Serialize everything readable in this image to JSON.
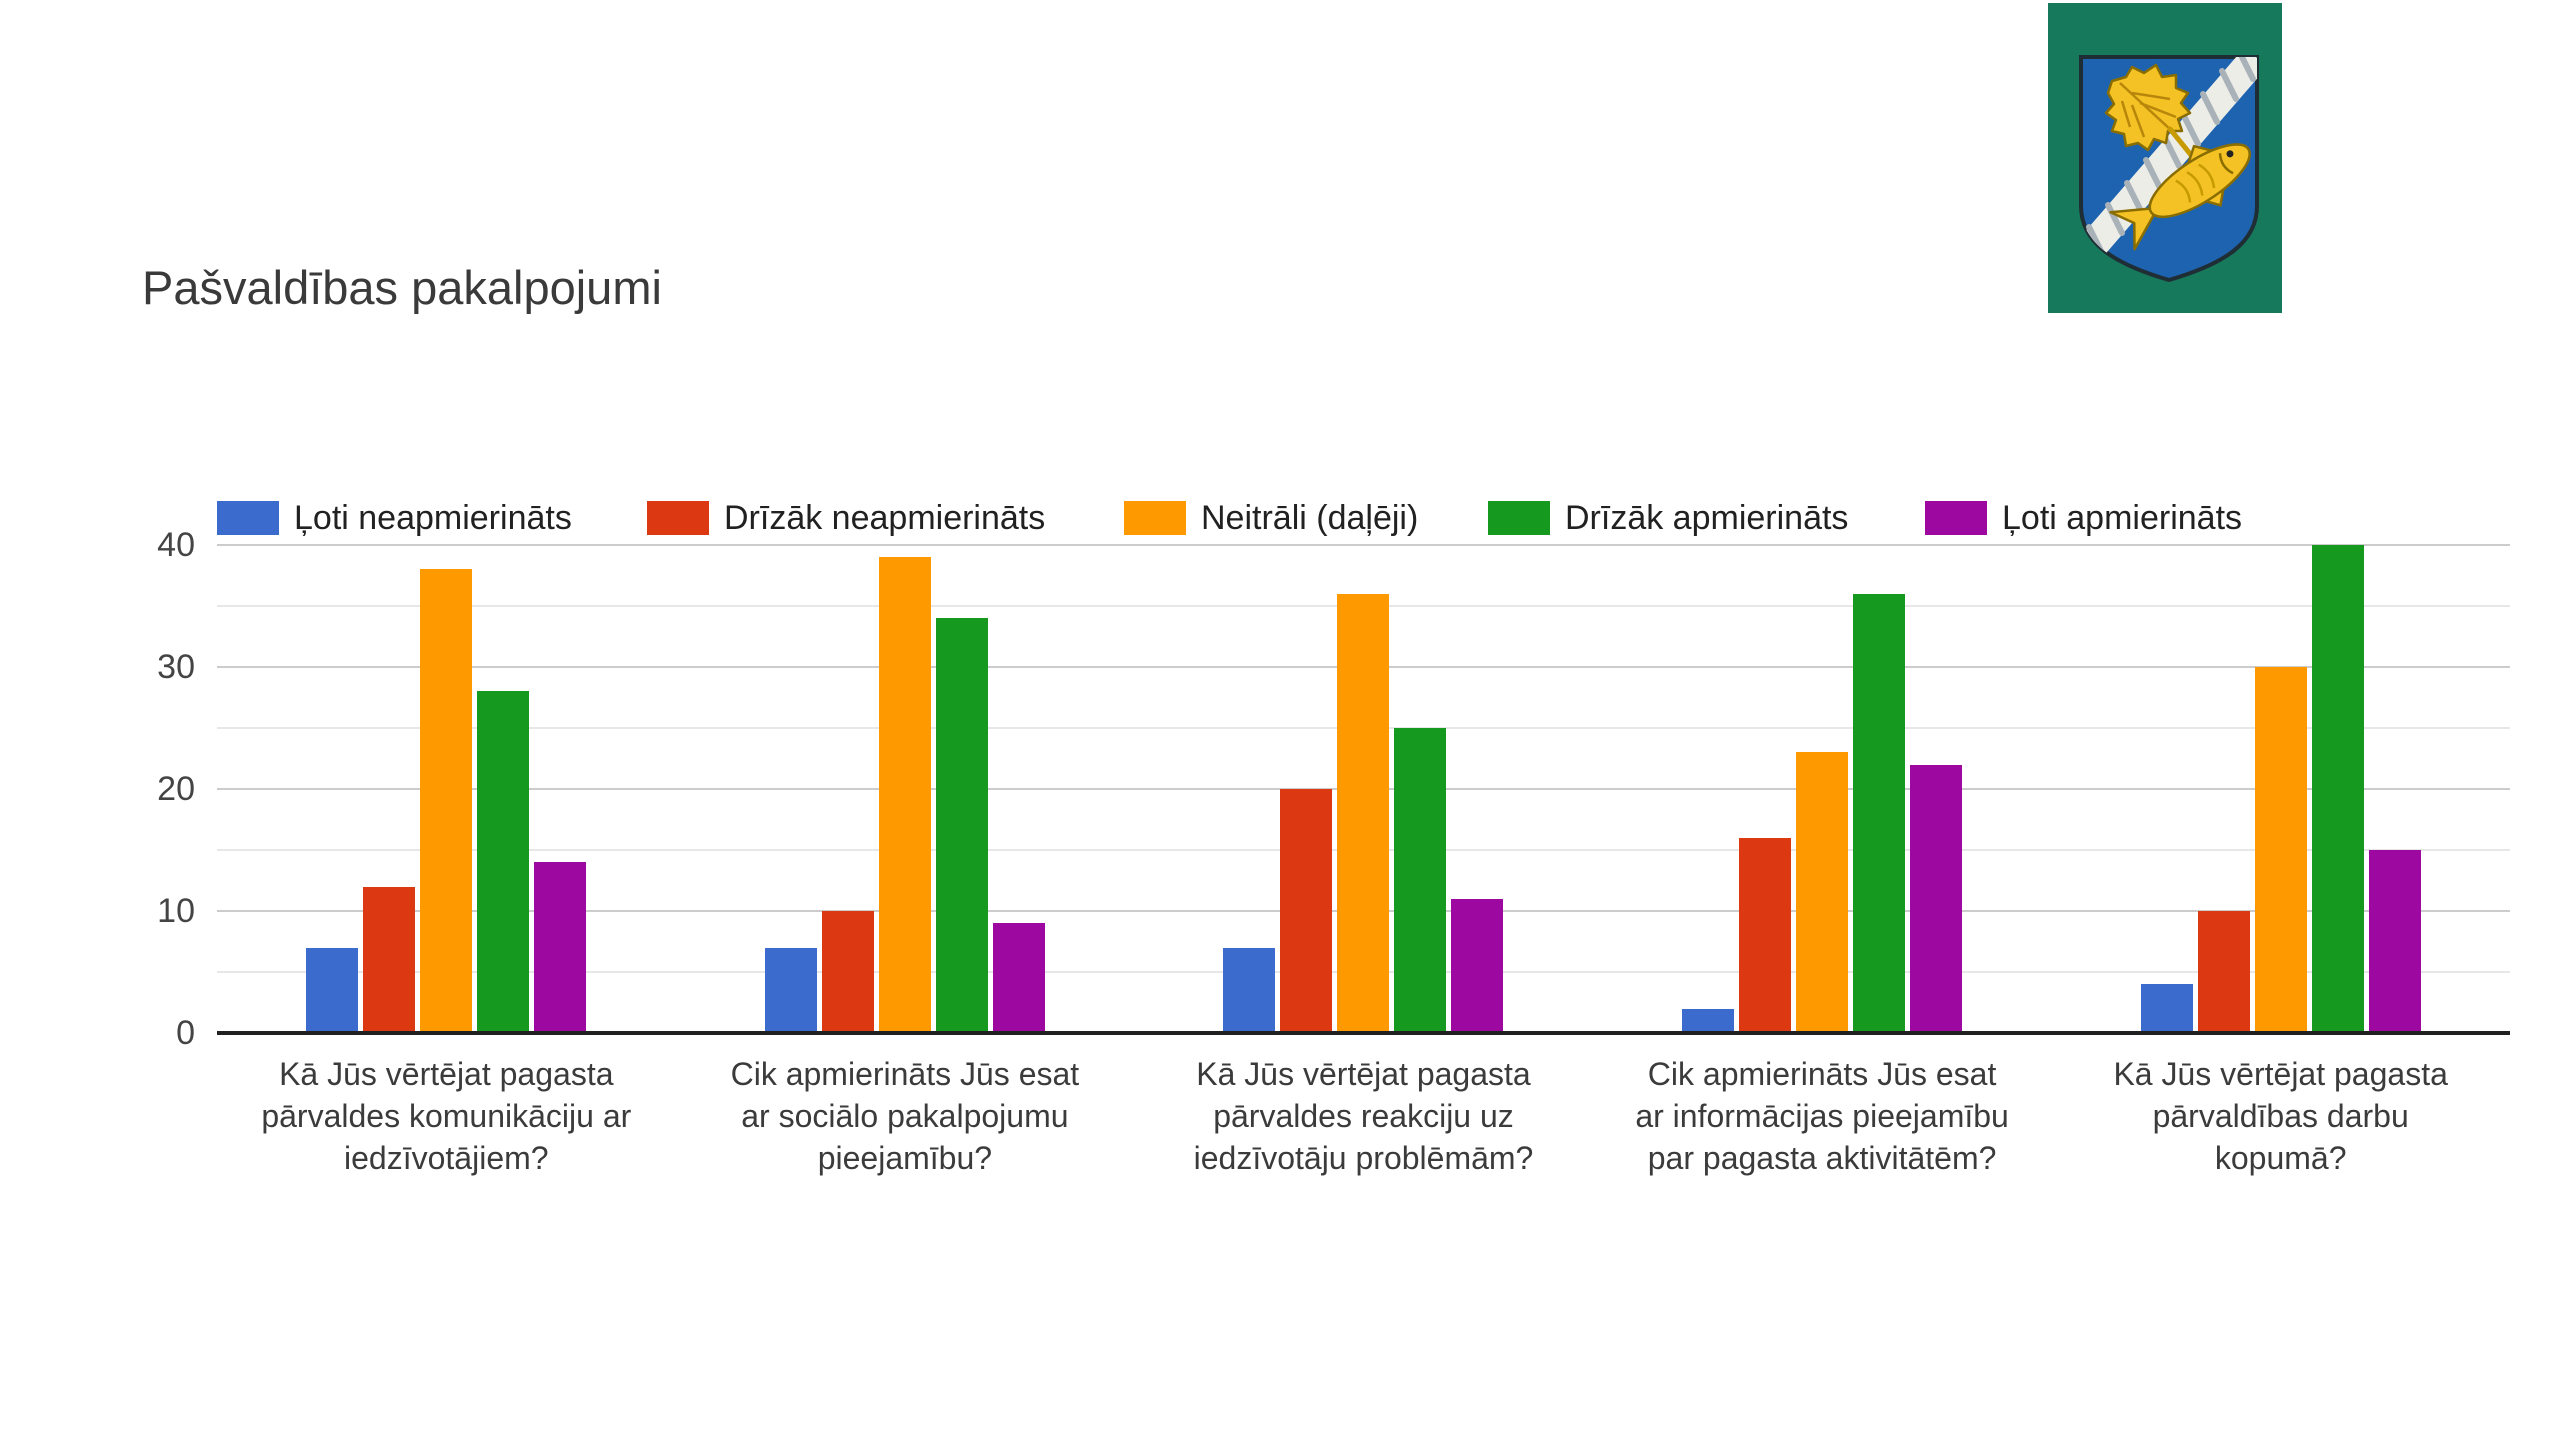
{
  "header": {
    "title": "Pašvaldības pakalpojumi"
  },
  "logo": {
    "description": "coat-of-arms-green-shield-birch-leaf-fish-rope",
    "colors": {
      "background_green": "#17795B",
      "shield_blue": "#1E63B0",
      "charge_yellow": "#F4C224",
      "charge_outline": "#8A6D00",
      "rope_white": "#EDEDE7",
      "rope_shade": "#A9B2B9",
      "outline_dark": "#1F2D35"
    }
  },
  "chart_data": {
    "type": "bar",
    "title": "Pašvaldības pakalpojumi",
    "grid": true,
    "legend_position": "top",
    "ylim": [
      0,
      40
    ],
    "yticks": [
      0,
      10,
      20,
      30,
      40
    ],
    "minor_gridlines": [
      5,
      15,
      25,
      35
    ],
    "axis_color": "#212121",
    "major_grid_color": "#cccccc",
    "minor_grid_color": "#e7e7e7",
    "categories": [
      "Kā Jūs vērtējat pagasta pārvaldes komunikāciju ar iedzīvotājiem?",
      "Cik apmierināts Jūs esat ar sociālo pakalpojumu pieejamību?",
      "Kā Jūs vērtējat pagasta pārvaldes reakciju uz iedzīvotāju problēmām?",
      "Cik apmierināts Jūs esat ar informācijas pieejamību par pagasta aktivitātēm?",
      "Kā Jūs vērtējat pagasta pārvaldības darbu kopumā?"
    ],
    "category_lines": [
      [
        "Kā Jūs vērtējat pagasta",
        "pārvaldes komunikāciju ar",
        "iedzīvotājiem?"
      ],
      [
        "Cik apmierināts Jūs esat",
        "ar sociālo pakalpojumu",
        "pieejamību?"
      ],
      [
        "Kā Jūs vērtējat pagasta",
        "pārvaldes reakciju uz",
        "iedzīvotāju problēmām?"
      ],
      [
        "Cik apmierināts Jūs esat",
        "ar informācijas pieejamību",
        "par pagasta aktivitātēm?"
      ],
      [
        "Kā Jūs vērtējat pagasta",
        "pārvaldības darbu",
        "kopumā?"
      ]
    ],
    "series": [
      {
        "name": "Ļoti neapmierināts",
        "color": "#3B6CCD",
        "values": [
          7,
          7,
          7,
          2,
          4
        ]
      },
      {
        "name": "Drīzāk neapmierināts",
        "color": "#DC3912",
        "values": [
          12,
          10,
          20,
          16,
          10
        ]
      },
      {
        "name": "Neitrāli (daļēji)",
        "color": "#FF9900",
        "values": [
          38,
          39,
          36,
          23,
          30
        ]
      },
      {
        "name": "Drīzāk apmierināts",
        "color": "#16991F",
        "values": [
          28,
          34,
          25,
          36,
          40
        ]
      },
      {
        "name": "Ļoti apmierināts",
        "color": "#9C08A0",
        "values": [
          14,
          9,
          11,
          22,
          15
        ]
      }
    ]
  }
}
